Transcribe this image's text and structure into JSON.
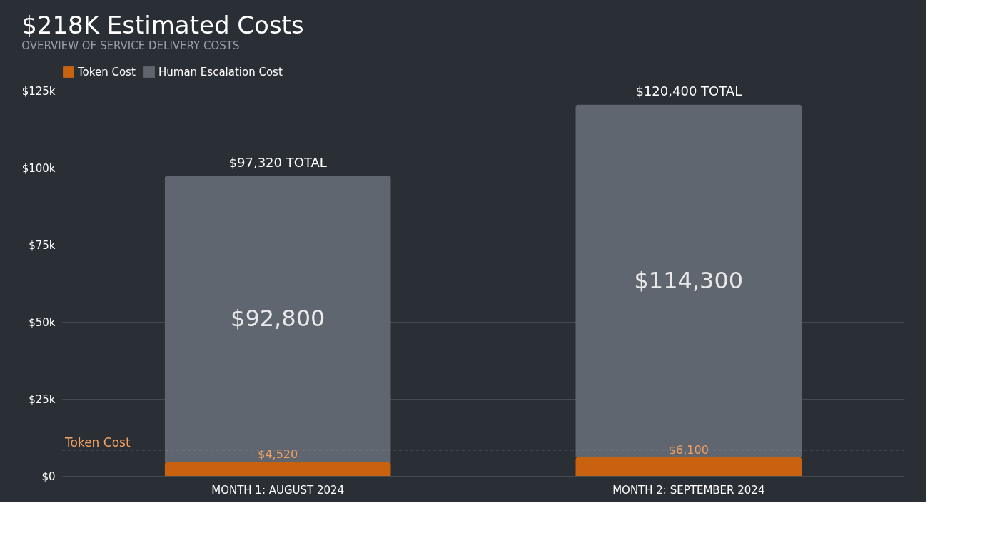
{
  "chart_data": {
    "type": "bar",
    "title": "$218K Estimated Costs",
    "subtitle": "OVERVIEW OF SERVICE DELIVERY COSTS",
    "categories": [
      "MONTH 1: AUGUST 2024",
      "MONTH 2: SEPTEMBER 2024"
    ],
    "stacked": true,
    "series": [
      {
        "name": "Token Cost",
        "color": "#c8620f",
        "values": [
          4520,
          6100
        ],
        "value_labels": [
          "$4,520",
          "$6,100"
        ]
      },
      {
        "name": "Human Escalation Cost",
        "color": "#5f6670",
        "values": [
          92800,
          114300
        ],
        "value_labels": [
          "$92,800",
          "$114,300"
        ]
      }
    ],
    "totals": [
      "$97,320 TOTAL",
      "$120,400 TOTAL"
    ],
    "ylim": [
      0,
      125000
    ],
    "yticks": [
      {
        "value": 0,
        "label": "$0"
      },
      {
        "value": 25000,
        "label": "$25k"
      },
      {
        "value": 50000,
        "label": "$50k"
      },
      {
        "value": 75000,
        "label": "$75k"
      },
      {
        "value": 100000,
        "label": "$100k"
      },
      {
        "value": 125000,
        "label": "$125k"
      }
    ],
    "ref_lines": [
      {
        "axis": "y",
        "value": 8400,
        "label": "Token Cost",
        "color": "#9aa0a8",
        "line_style": "dashed"
      }
    ],
    "grid": "y",
    "legend": "top"
  }
}
